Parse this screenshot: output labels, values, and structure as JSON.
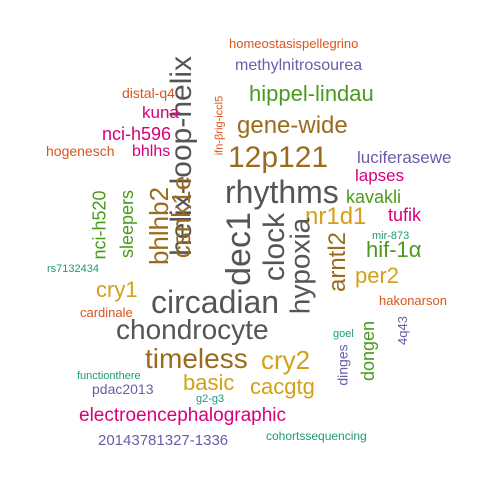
{
  "palette": {
    "dark_gray": "#555555",
    "gold": "#d4a017",
    "brown": "#9a6b1c",
    "green": "#4a9a1c",
    "magenta": "#d6007a",
    "orange": "#d9541a",
    "purple": "#6b5ca8",
    "teal": "#1b9a7a"
  },
  "words": [
    {
      "text": "homeostasispellegrino",
      "color": "orange"
    },
    {
      "text": "methylnitrosourea",
      "color": "purple"
    },
    {
      "text": "helix-loop-helix",
      "color": "dark_gray"
    },
    {
      "text": "distal-q4",
      "color": "orange"
    },
    {
      "text": "ifn-βrig-iccl5",
      "color": "orange"
    },
    {
      "text": "hippel-lindau",
      "color": "green"
    },
    {
      "text": "kuna",
      "color": "magenta"
    },
    {
      "text": "gene-wide",
      "color": "brown"
    },
    {
      "text": "nci-h596",
      "color": "magenta"
    },
    {
      "text": "hogenesch",
      "color": "orange"
    },
    {
      "text": "bhlhs",
      "color": "magenta"
    },
    {
      "text": "12p121",
      "color": "brown"
    },
    {
      "text": "luciferasewe",
      "color": "purple"
    },
    {
      "text": "lapses",
      "color": "magenta"
    },
    {
      "text": "csnk1e",
      "color": "brown"
    },
    {
      "text": "rhythms",
      "color": "dark_gray"
    },
    {
      "text": "bhlhb2",
      "color": "brown"
    },
    {
      "text": "nci-h520",
      "color": "green"
    },
    {
      "text": "sleepers",
      "color": "green"
    },
    {
      "text": "kavakli",
      "color": "green"
    },
    {
      "text": "nr1d1",
      "color": "gold"
    },
    {
      "text": "tufik",
      "color": "magenta"
    },
    {
      "text": "dec1",
      "color": "dark_gray"
    },
    {
      "text": "clock",
      "color": "dark_gray"
    },
    {
      "text": "hypoxia",
      "color": "dark_gray"
    },
    {
      "text": "mir-873",
      "color": "teal"
    },
    {
      "text": "arntl2",
      "color": "brown"
    },
    {
      "text": "hif-1α",
      "color": "green"
    },
    {
      "text": "rs7132434",
      "color": "teal"
    },
    {
      "text": "per2",
      "color": "gold"
    },
    {
      "text": "cry1",
      "color": "gold"
    },
    {
      "text": "circadian",
      "color": "dark_gray"
    },
    {
      "text": "hakonarson",
      "color": "orange"
    },
    {
      "text": "cardinale",
      "color": "orange"
    },
    {
      "text": "chondrocyte",
      "color": "dark_gray"
    },
    {
      "text": "goel",
      "color": "teal"
    },
    {
      "text": "4q43",
      "color": "purple"
    },
    {
      "text": "dongen",
      "color": "green"
    },
    {
      "text": "dinges",
      "color": "purple"
    },
    {
      "text": "timeless",
      "color": "brown"
    },
    {
      "text": "cry2",
      "color": "gold"
    },
    {
      "text": "functionthere",
      "color": "teal"
    },
    {
      "text": "basic",
      "color": "gold"
    },
    {
      "text": "cacgtg",
      "color": "gold"
    },
    {
      "text": "pdac2013",
      "color": "purple"
    },
    {
      "text": "g2-g3",
      "color": "teal"
    },
    {
      "text": "electroencephalographic",
      "color": "magenta"
    },
    {
      "text": "20143781327-1336",
      "color": "purple"
    },
    {
      "text": "cohortssequencing",
      "color": "teal"
    }
  ]
}
